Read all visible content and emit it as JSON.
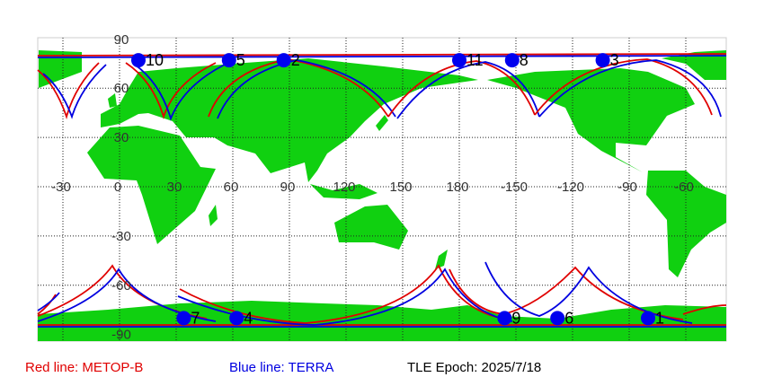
{
  "map": {
    "lat_labels": [
      90,
      60,
      30,
      -30,
      -60,
      -90
    ],
    "lon_labels": [
      -30,
      0,
      30,
      60,
      90,
      120,
      150,
      180,
      -150,
      -120,
      -90,
      -60
    ],
    "satellites": [
      {
        "label": "10",
        "lon": 10,
        "lat": 77
      },
      {
        "label": "5",
        "lon": 58,
        "lat": 77
      },
      {
        "label": "2",
        "lon": 87,
        "lat": 77
      },
      {
        "label": "11",
        "lon": 180,
        "lat": 77
      },
      {
        "label": "8",
        "lon": -152,
        "lat": 77
      },
      {
        "label": "3",
        "lon": -104,
        "lat": 77
      },
      {
        "label": "7",
        "lon": 34,
        "lat": -80
      },
      {
        "label": "4",
        "lon": 62,
        "lat": -80
      },
      {
        "label": "9",
        "lon": -156,
        "lat": -80
      },
      {
        "label": "6",
        "lon": -128,
        "lat": -80
      },
      {
        "label": "1",
        "lon": -80,
        "lat": -80
      }
    ]
  },
  "legend": {
    "red": "Red line: METOP-B",
    "blue": "Blue line: TERRA",
    "epoch": "TLE Epoch: 2025/7/18"
  }
}
